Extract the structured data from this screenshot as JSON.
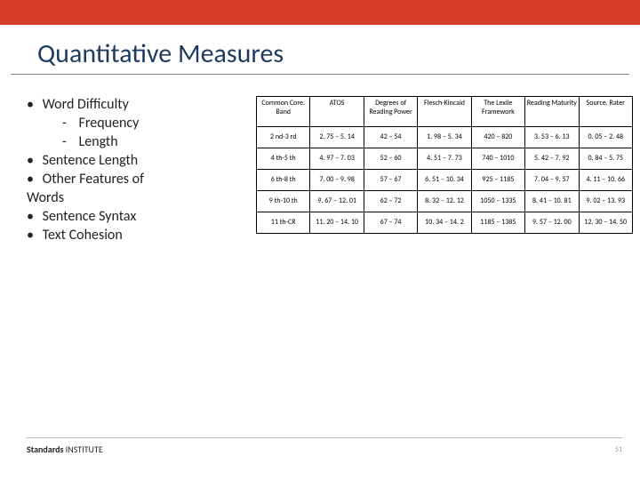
{
  "colors": {
    "top_bar": "#d43c2c",
    "title": "#1f3a5f",
    "text": "#222222",
    "border": "#000000",
    "rule": "#888888"
  },
  "title": "Quantitative Measures",
  "bullets": {
    "l1_0": "Word Difficulty",
    "l2_0": "Frequency",
    "l2_1": "Length",
    "l1_1": "Sentence Length",
    "l1_2": "Other Features of",
    "l1_2_cont": "Words",
    "l1_3": "Sentence Syntax",
    "l1_4": "Text  Cohesion"
  },
  "table": {
    "headers": [
      "Common Core. Band",
      "ATOS",
      "Degrees of Reading Power",
      "Flesch-Kincaid",
      "The Lexile Framework",
      "Reading Maturity",
      "Source. Rater"
    ],
    "rows": [
      [
        "2 nd-3 rd",
        "2. 75 – 5. 14",
        "42 – 54",
        "1. 98 – 5. 34",
        "420 – 820",
        "3. 53 – 6. 13",
        "0. 05 – 2. 48"
      ],
      [
        "4 th-5 th",
        "4. 97 – 7. 03",
        "52 – 60",
        "4. 51 – 7. 73",
        "740 – 1010",
        "5. 42 – 7. 92",
        "0. 84 – 5. 75"
      ],
      [
        "6 th-8 th",
        "7. 00 – 9. 98",
        "57 – 67",
        "6. 51 – 10. 34",
        "925 – 1185",
        "7. 04 – 9. 57",
        "4. 11 – 10. 66"
      ],
      [
        "9 th-10 th",
        "9. 67 – 12. 01",
        "62 – 72",
        "8. 32 – 12. 12",
        "1050 – 1335",
        "8. 41 – 10. 81",
        "9. 02 – 13. 93"
      ],
      [
        "11 th-CR",
        "11. 20 – 14. 10",
        "67 – 74",
        "10. 34 – 14. 2",
        "1185 – 1385",
        "9. 57 – 12. 00",
        "12. 30 – 14. 50"
      ]
    ]
  },
  "footer": {
    "logo_bold": "Standards",
    "logo_reg": " INSTITUTE",
    "page": "51"
  }
}
